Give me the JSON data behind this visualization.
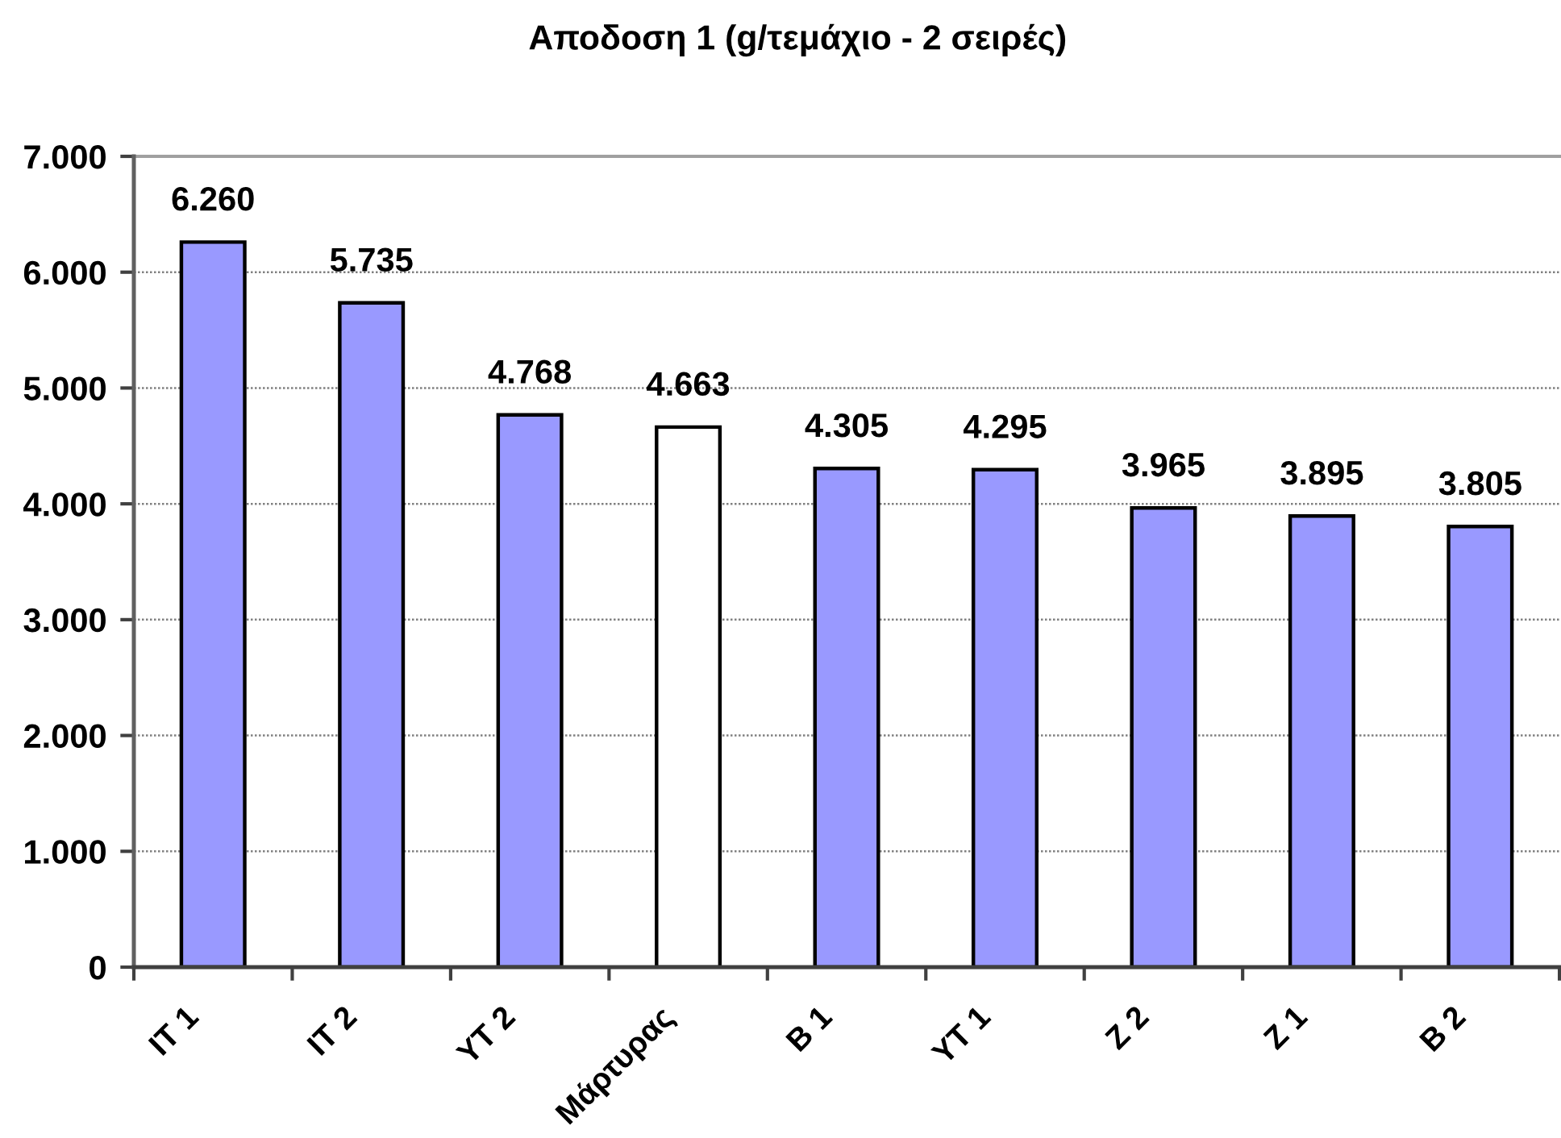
{
  "chart_data": {
    "type": "bar",
    "title": "Αποδοση 1 (g/τεμάχιο - 2 σειρές)",
    "categories": [
      "IT 1",
      "IT 2",
      "YT 2",
      "Μάρτυρας",
      "B 1",
      "YT 1",
      "Z 2",
      "Z 1",
      "B 2"
    ],
    "values": [
      6260,
      5735,
      4768,
      4663,
      4305,
      4295,
      3965,
      3895,
      3805
    ],
    "colors": [
      "#9999ff",
      "#9999ff",
      "#9999ff",
      "#ffffff",
      "#9999ff",
      "#9999ff",
      "#9999ff",
      "#9999ff",
      "#9999ff"
    ],
    "value_labels": [
      "6.260",
      "5.735",
      "4.768",
      "4.663",
      "4.305",
      "4.295",
      "3.965",
      "3.895",
      "3.805"
    ],
    "ylim": [
      0,
      7000
    ],
    "yticks": [
      0,
      {
        "value": 1000,
        "label": "1.000"
      },
      {
        "value": 2000,
        "label": "2.000"
      },
      {
        "value": 3000,
        "label": "3.000"
      },
      {
        "value": 4000,
        "label": "4.000"
      },
      {
        "value": 5000,
        "label": "5.000"
      },
      {
        "value": 6000,
        "label": "6.000"
      },
      {
        "value": 7000,
        "label": "7.000"
      }
    ],
    "grid": "y"
  }
}
